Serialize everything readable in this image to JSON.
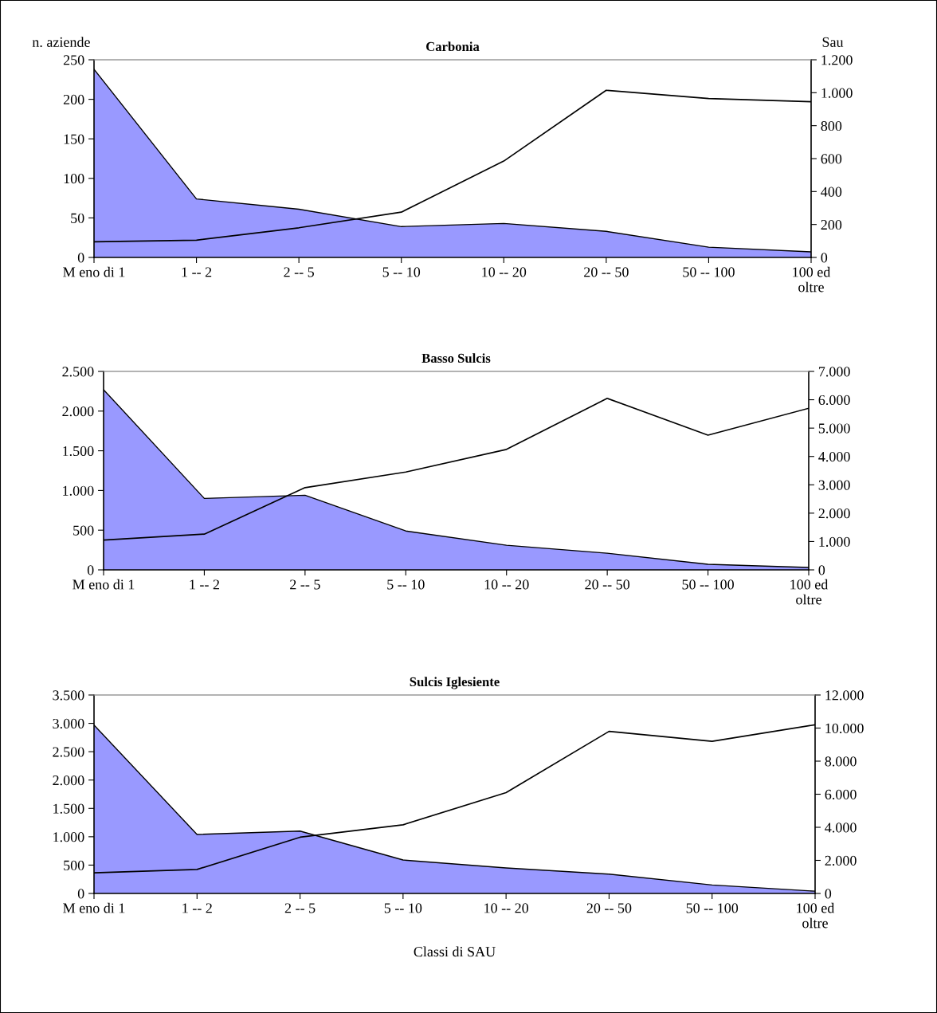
{
  "chart_data": [
    {
      "type": "area",
      "title": "Carbonia",
      "ylabel": "n. aziende",
      "y2label": "Sau",
      "categories": [
        "M eno di 1",
        "1 -- 2",
        "2 -- 5",
        "5 -- 10",
        "10 -- 20",
        "20 -- 50",
        "50 -- 100",
        "100 ed\noltre"
      ],
      "series": [
        {
          "color": "#9999ff",
          "values": [
            238,
            74,
            61,
            39,
            43,
            33,
            13,
            7
          ]
        },
        {
          "type": "line",
          "axis": "y2",
          "color": "#000000",
          "values": [
            95,
            105,
            180,
            275,
            585,
            1015,
            965,
            945
          ]
        }
      ],
      "ylim": [
        0,
        250
      ],
      "yticks": [
        0,
        50,
        100,
        150,
        200,
        250
      ],
      "y2lim": [
        0,
        1200
      ],
      "y2ticks": [
        0,
        200,
        400,
        600,
        800,
        {
          "value": 1000,
          "label": "1.000"
        },
        {
          "value": 1200,
          "label": "1.200"
        }
      ]
    },
    {
      "type": "area",
      "title": "Basso Sulcis",
      "categories": [
        "M eno di 1",
        "1 -- 2",
        "2 -- 5",
        "5 -- 10",
        "10 -- 20",
        "20 -- 50",
        "50 -- 100",
        "100 ed\noltre"
      ],
      "series": [
        {
          "color": "#9999ff",
          "values": [
            2270,
            900,
            940,
            490,
            310,
            210,
            70,
            30
          ]
        },
        {
          "type": "line",
          "axis": "y2",
          "color": "#000000",
          "values": [
            1050,
            1260,
            2900,
            3450,
            4250,
            6050,
            4750,
            5700
          ]
        }
      ],
      "ylim": [
        0,
        2500
      ],
      "yticks": [
        0,
        500,
        {
          "value": 1000,
          "label": "1.000"
        },
        {
          "value": 1500,
          "label": "1.500"
        },
        {
          "value": 2000,
          "label": "2.000"
        },
        {
          "value": 2500,
          "label": "2.500"
        }
      ],
      "y2lim": [
        0,
        7000
      ],
      "y2ticks": [
        0,
        {
          "value": 1000,
          "label": "1.000"
        },
        {
          "value": 2000,
          "label": "2.000"
        },
        {
          "value": 3000,
          "label": "3.000"
        },
        {
          "value": 4000,
          "label": "4.000"
        },
        {
          "value": 5000,
          "label": "5.000"
        },
        {
          "value": 6000,
          "label": "6.000"
        },
        {
          "value": 7000,
          "label": "7.000"
        }
      ]
    },
    {
      "type": "area",
      "title": "Sulcis Iglesiente",
      "xlabel": "Classi di SAU",
      "categories": [
        "M eno di 1",
        "1 -- 2",
        "2 -- 5",
        "5 -- 10",
        "10 -- 20",
        "20 -- 50",
        "50 -- 100",
        "100 ed\noltre"
      ],
      "series": [
        {
          "color": "#9999ff",
          "values": [
            2970,
            1040,
            1100,
            590,
            450,
            340,
            150,
            40
          ]
        },
        {
          "type": "line",
          "axis": "y2",
          "color": "#000000",
          "values": [
            1250,
            1450,
            3400,
            4150,
            6100,
            9800,
            9200,
            10200
          ]
        }
      ],
      "ylim": [
        0,
        3500
      ],
      "yticks": [
        0,
        500,
        {
          "value": 1000,
          "label": "1.000"
        },
        {
          "value": 1500,
          "label": "1.500"
        },
        {
          "value": 2000,
          "label": "2.000"
        },
        {
          "value": 2500,
          "label": "2.500"
        },
        {
          "value": 3000,
          "label": "3.000"
        },
        {
          "value": 3500,
          "label": "3.500"
        }
      ],
      "y2lim": [
        0,
        12000
      ],
      "y2ticks": [
        0,
        {
          "value": 2000,
          "label": "2.000"
        },
        {
          "value": 4000,
          "label": "4.000"
        },
        {
          "value": 6000,
          "label": "6.000"
        },
        {
          "value": 8000,
          "label": "8.000"
        },
        {
          "value": 10000,
          "label": "10.000"
        },
        {
          "value": 12000,
          "label": "12.000"
        }
      ]
    }
  ]
}
